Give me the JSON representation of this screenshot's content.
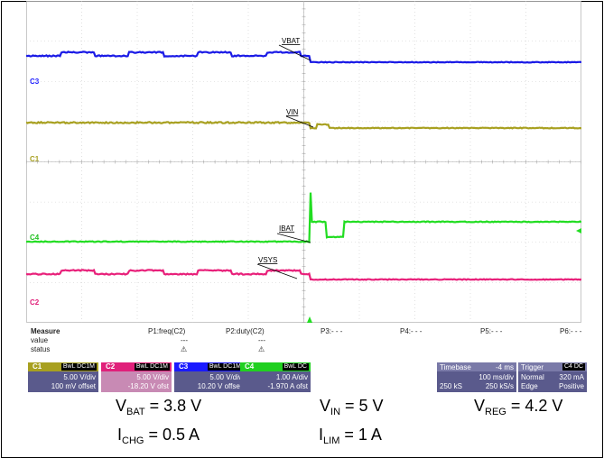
{
  "channel_markers": [
    {
      "label": "C3",
      "color": "#1a1aff"
    },
    {
      "label": "C1",
      "color": "#a8a020"
    },
    {
      "label": "C4",
      "color": "#20c020"
    },
    {
      "label": "C2",
      "color": "#e0207a"
    }
  ],
  "trace_labels": [
    "VBAT",
    "VIN",
    "IBAT",
    "VSYS"
  ],
  "trace_colors": {
    "vbat": "#1a1ae6",
    "vin": "#a8a020",
    "ibat": "#22dd22",
    "vsys": "#e8207a"
  },
  "measure": {
    "title": "Measure",
    "row_labels": [
      "value",
      "status"
    ],
    "params": [
      "P1:freq(C2)",
      "P2:duty(C2)",
      "P3:- - -",
      "P4:- - -",
      "P5:- - -",
      "P6:- - -"
    ],
    "p1_value": "---",
    "p2_value": "---",
    "status_symbol": "⚠"
  },
  "channels": [
    {
      "tag": "C1",
      "coupling": "BwL DC1M",
      "scale": "5.00 V/div",
      "offset": "100 mV offset",
      "color": "#a8a020"
    },
    {
      "tag": "C2",
      "coupling": "BwL DC1M",
      "scale": "5.00 V/div",
      "offset": "-18.20 V ofst",
      "color": "#e0207a"
    },
    {
      "tag": "C3",
      "coupling": "BwL DC1M",
      "scale": "5.00 V/div",
      "offset": "10.20 V offset",
      "color": "#1a1aff"
    },
    {
      "tag": "C4",
      "coupling": "BwL DC",
      "scale": "1.00 A/div",
      "offset": "-1.970 A ofst",
      "color": "#20d020"
    }
  ],
  "timebase": {
    "title": "Timebase",
    "delay": "-4 ms",
    "div": "100 ms/div",
    "samples": "250 kS",
    "rate": "250 kS/s"
  },
  "trigger": {
    "title": "Trigger",
    "source": "C4 DC",
    "mode": "Normal",
    "level": "320 mA",
    "type": "Edge",
    "slope": "Positive"
  },
  "captions": {
    "vbat_sym": "V",
    "vbat_sub": "BAT",
    "vbat_val": " = 3.8 V",
    "ichg_sym": "I",
    "ichg_sub": "CHG",
    "ichg_val": " = 0.5 A",
    "vin_sym": "V",
    "vin_sub": "IN",
    "vin_val": " = 5 V",
    "ilim_sym": "I",
    "ilim_sub": "LIM",
    "ilim_val": " = 1 A",
    "vreg_sym": "V",
    "vreg_sub": "REG",
    "vreg_val": " = 4.2 V"
  }
}
